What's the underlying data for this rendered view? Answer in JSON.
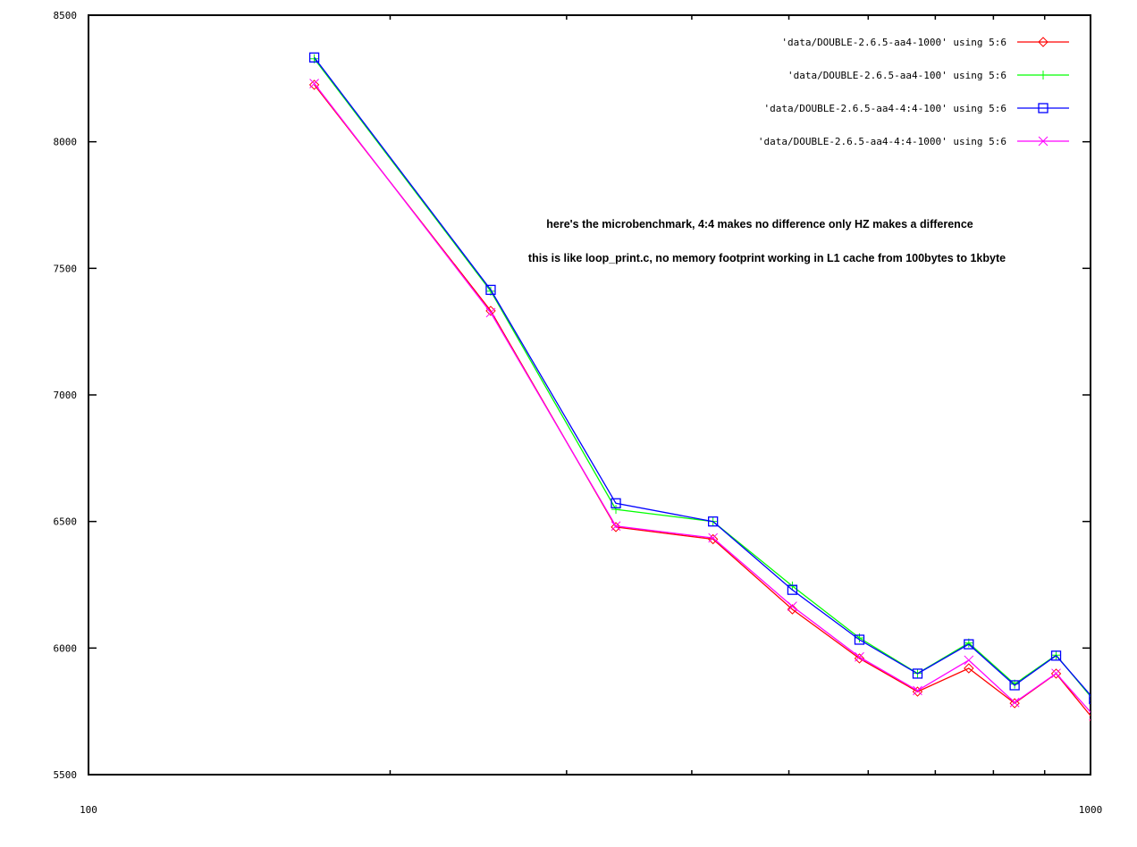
{
  "chart_data": {
    "type": "line",
    "title": "",
    "xlabel": "",
    "ylabel": "",
    "xscale": "log",
    "xlim": [
      100,
      1000
    ],
    "ylim": [
      5500,
      8500
    ],
    "x_ticks": [
      "100",
      "1000"
    ],
    "y_ticks": [
      "5500",
      "6000",
      "6500",
      "7000",
      "7500",
      "8000",
      "8500"
    ],
    "grid": false,
    "legend_position": "top-right",
    "annotations": [
      "here's the microbenchmark, 4:4 makes no difference only HZ makes a difference",
      "this is like loop_print.c, no memory footprint working in L1 cache from 100bytes to 1kbyte"
    ],
    "x": [
      168,
      252,
      336,
      420,
      504,
      588,
      672,
      756,
      840,
      924,
      1008
    ],
    "series": [
      {
        "name": "'data/DOUBLE-2.6.5-aa4-1000' using 5:6",
        "color": "#ff0000",
        "marker": "diamond",
        "values": [
          8225,
          7332,
          6478,
          6430,
          6153,
          5959,
          5828,
          5920,
          5782,
          5899,
          5716
        ]
      },
      {
        "name": "'data/DOUBLE-2.6.5-aa4-100' using 5:6",
        "color": "#00ff00",
        "marker": "plus",
        "values": [
          8328,
          7410,
          6548,
          6500,
          6245,
          6040,
          5900,
          6020,
          5858,
          5972,
          5793
        ]
      },
      {
        "name": "'data/DOUBLE-2.6.5-aa4-4:4-100' using 5:6",
        "color": "#0000ff",
        "marker": "square",
        "values": [
          8333,
          7415,
          6572,
          6500,
          6230,
          6033,
          5899,
          6015,
          5853,
          5970,
          5798
        ]
      },
      {
        "name": "'data/DOUBLE-2.6.5-aa4-4:4-1000' using 5:6",
        "color": "#ff00ff",
        "marker": "cross",
        "values": [
          8230,
          7325,
          6482,
          6435,
          6165,
          5965,
          5832,
          5952,
          5785,
          5900,
          5732
        ]
      }
    ]
  }
}
